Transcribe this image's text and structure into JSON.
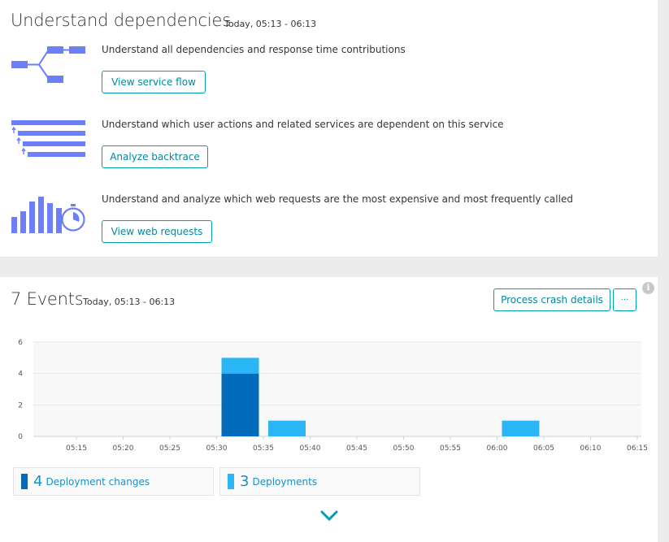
{
  "dependencies": {
    "title": "Understand dependencies",
    "timeframe": "Today, 05:13 - 06:13",
    "rows": [
      {
        "text": "Understand all dependencies and response time contributions",
        "button": "View service flow",
        "icon": "service-flow-icon"
      },
      {
        "text": "Understand which user actions and related services are dependent on this service",
        "button": "Analyze backtrace",
        "icon": "backtrace-icon"
      },
      {
        "text": "Understand and analyze which web requests are the most expensive and most frequently called",
        "button": "View web requests",
        "icon": "web-requests-icon"
      }
    ]
  },
  "events": {
    "title": "7 Events",
    "timeframe": "Today, 05:13 - 06:13",
    "process_crash_button": "Process crash details",
    "more_button": "···",
    "legend": [
      {
        "count": "4",
        "label": "Deployment changes",
        "color": "#006bba"
      },
      {
        "count": "3",
        "label": "Deployments",
        "color": "#2ab6f4"
      }
    ]
  },
  "colors": {
    "accent": "#00a1b2",
    "icon_blue": "#6d7ff7",
    "deployment_changes": "#006bba",
    "deployments": "#2ab6f4"
  },
  "chart_data": {
    "type": "bar",
    "stacked": true,
    "x_tick_labels": [
      "05:15",
      "05:20",
      "05:25",
      "05:30",
      "05:35",
      "05:40",
      "05:45",
      "05:50",
      "05:55",
      "06:00",
      "06:05",
      "06:10",
      "06:15"
    ],
    "y_tick_labels": [
      "0",
      "2",
      "4",
      "6"
    ],
    "ylim": [
      0,
      6
    ],
    "series": [
      {
        "name": "Deployment changes",
        "color": "#006bba",
        "bars": [
          {
            "start": "05:30",
            "end": "05:34",
            "value": 4
          }
        ]
      },
      {
        "name": "Deployments",
        "color": "#2ab6f4",
        "bars": [
          {
            "start": "05:30",
            "end": "05:34",
            "value": 1
          },
          {
            "start": "05:35",
            "end": "05:39",
            "value": 1
          },
          {
            "start": "06:00",
            "end": "06:04",
            "value": 1
          }
        ]
      }
    ],
    "grid": true,
    "legend": "bottom"
  }
}
